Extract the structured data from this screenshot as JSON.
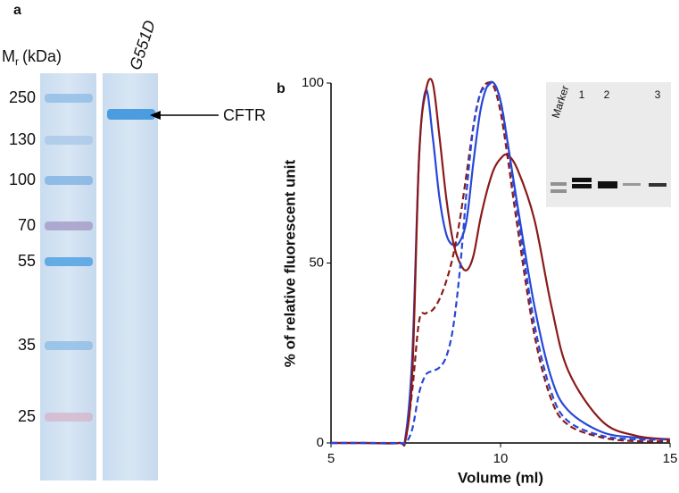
{
  "panel_a": {
    "label": "a",
    "mr_main": "M",
    "mr_sub": "r",
    "mr_unit": "(kDa)",
    "lane_label": "G551D",
    "arrow_label": "CFTR",
    "markers": [
      "250",
      "130",
      "100",
      "70",
      "55",
      "35",
      "25"
    ]
  },
  "chart_data": {
    "type": "line",
    "panel_label": "b",
    "xlabel": "Volume (ml)",
    "ylabel": "% of relative fluorescent unit",
    "xlim": [
      5,
      15
    ],
    "ylim": [
      0,
      100
    ],
    "xticks": [
      5,
      10,
      15
    ],
    "yticks": [
      0,
      50,
      100
    ],
    "x": [
      5,
      6,
      7,
      7.2,
      7.4,
      7.6,
      7.8,
      8.0,
      8.2,
      8.4,
      8.6,
      8.8,
      9.0,
      9.2,
      9.4,
      9.6,
      9.8,
      10.0,
      10.2,
      10.5,
      11,
      11.5,
      12,
      13,
      14,
      15
    ],
    "series": [
      {
        "color": "#2747d8",
        "dashed": false,
        "values": [
          0,
          0,
          0,
          2,
          25,
          80,
          98,
          85,
          68,
          58,
          55,
          56,
          62,
          78,
          92,
          99,
          100,
          95,
          84,
          66,
          38,
          18,
          9,
          3,
          1.5,
          1
        ]
      },
      {
        "color": "#8b1a1a",
        "dashed": false,
        "values": [
          0,
          0,
          0,
          1,
          20,
          80,
          98,
          100,
          85,
          68,
          56,
          50,
          48,
          52,
          62,
          70,
          76,
          79,
          80,
          76,
          62,
          38,
          20,
          6,
          2,
          1
        ]
      },
      {
        "color": "#8b1a1a",
        "dashed": true,
        "values": [
          0,
          0,
          0,
          1,
          15,
          34,
          36,
          37,
          40,
          45,
          52,
          62,
          75,
          88,
          97,
          100,
          99,
          92,
          80,
          60,
          30,
          12,
          5,
          1.5,
          0.5,
          0.5
        ]
      },
      {
        "color": "#2747d8",
        "dashed": true,
        "values": [
          0,
          0,
          0,
          0,
          4,
          14,
          19,
          20,
          21,
          24,
          32,
          48,
          70,
          88,
          97,
          99,
          100,
          95,
          84,
          64,
          33,
          14,
          6,
          2,
          1,
          1
        ]
      }
    ],
    "inset_lanes": [
      "Marker",
      "1",
      "2",
      "3"
    ]
  }
}
